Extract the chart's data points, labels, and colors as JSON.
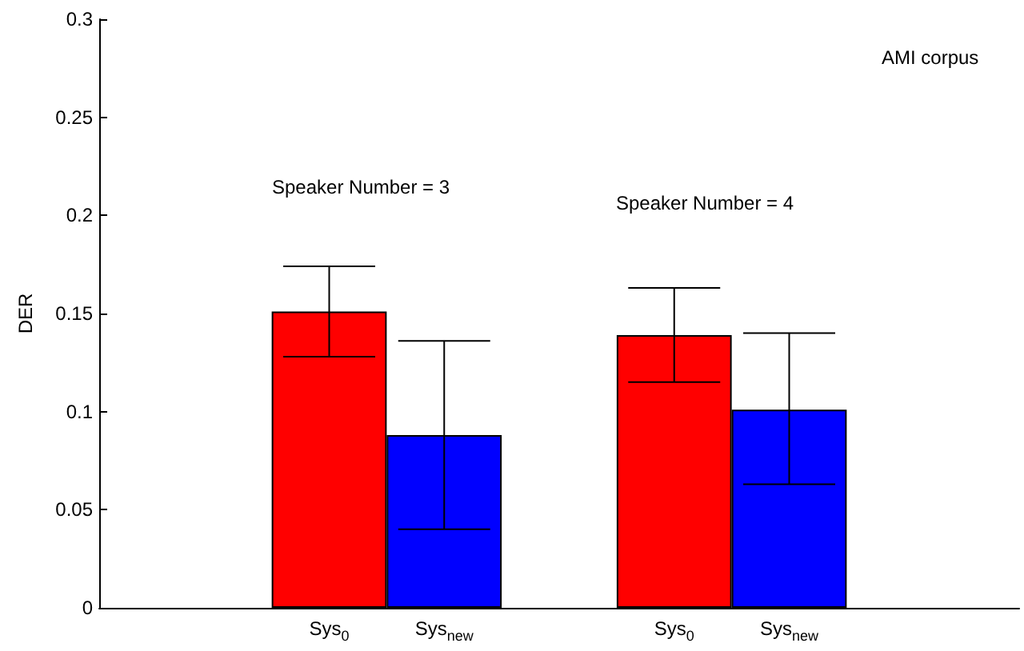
{
  "chart_data": {
    "type": "bar",
    "ylabel": "DER",
    "annotations": [
      "Speaker Number = 3",
      "Speaker Number = 4",
      "AMI corpus"
    ],
    "categories": [
      null,
      null,
      "Sys$_{0}$",
      "Sys$_{new}$",
      null,
      "Sys$_{0}$",
      "Sys$_{new}$",
      null,
      null
    ],
    "values": [
      null,
      null,
      0.151,
      0.088,
      null,
      0.139,
      0.101,
      null,
      null
    ],
    "colors": [
      "#ff0000",
      "#0000ff",
      "#ff0000",
      "#0000ff",
      "#0000ff",
      "#ff0000",
      "#0000ff",
      "#ff0000",
      "#0000ff"
    ],
    "errors": [
      null,
      null,
      [
        0.128,
        0.174
      ],
      [
        0.04,
        0.136
      ],
      null,
      [
        0.115,
        0.163
      ],
      [
        0.063,
        0.14
      ],
      null,
      null
    ],
    "ylim": [
      0,
      0.3
    ],
    "yticks": [
      0,
      0.05,
      0.1,
      0.15,
      0.2,
      0.25,
      0.3
    ],
    "grid": false
  }
}
